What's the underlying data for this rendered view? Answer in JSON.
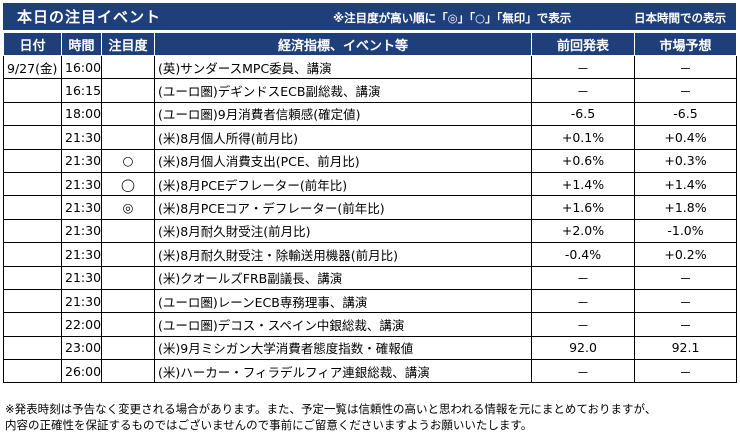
{
  "header": {
    "title": "本日の注目イベント",
    "note": "※注目度が高い順に「◎」「○」「無印」で表示",
    "timezone": "日本時間での表示"
  },
  "columns": [
    "日付",
    "時間",
    "注目度",
    "経済指標、イベント等",
    "前回発表",
    "市場予想"
  ],
  "rows": [
    {
      "date": "9/27(金)",
      "time": "16:00",
      "mark": "",
      "event": "(英)サンダースMPC委員、講演",
      "prev": "－",
      "forecast": "－"
    },
    {
      "date": "",
      "time": "16:15",
      "mark": "",
      "event": "(ユーロ圏)デギンドスECB副総裁、講演",
      "prev": "－",
      "forecast": "－"
    },
    {
      "date": "",
      "time": "18:00",
      "mark": "",
      "event": "(ユーロ圏)9月消費者信頼感(確定値)",
      "prev": "-6.5",
      "forecast": "-6.5"
    },
    {
      "date": "",
      "time": "21:30",
      "mark": "",
      "event": "(米)8月個人所得(前月比)",
      "prev": "+0.1%",
      "forecast": "+0.4%"
    },
    {
      "date": "",
      "time": "21:30",
      "mark": "○",
      "event": "(米)8月個人消費支出(PCE、前月比)",
      "prev": "+0.6%",
      "forecast": "+0.3%"
    },
    {
      "date": "",
      "time": "21:30",
      "mark": "◯",
      "event": "(米)8月PCEデフレーター(前年比)",
      "prev": "+1.4%",
      "forecast": "+1.4%"
    },
    {
      "date": "",
      "time": "21:30",
      "mark": "◎",
      "event": "(米)8月PCEコア・デフレーター(前年比)",
      "prev": "+1.6%",
      "forecast": "+1.8%"
    },
    {
      "date": "",
      "time": "21:30",
      "mark": "",
      "event": "(米)8月耐久財受注(前月比)",
      "prev": "+2.0%",
      "forecast": "-1.0%"
    },
    {
      "date": "",
      "time": "21:30",
      "mark": "",
      "event": "(米)8月耐久財受注・除輸送用機器(前月比)",
      "prev": "-0.4%",
      "forecast": "+0.2%"
    },
    {
      "date": "",
      "time": "21:30",
      "mark": "",
      "event": "(米)クオールズFRB副議長、講演",
      "prev": "－",
      "forecast": "－"
    },
    {
      "date": "",
      "time": "21:30",
      "mark": "",
      "event": "(ユーロ圏)レーンECB専務理事、講演",
      "prev": "－",
      "forecast": "－"
    },
    {
      "date": "",
      "time": "22:00",
      "mark": "",
      "event": "(ユーロ圏)デコス・スペイン中銀総裁、講演",
      "prev": "－",
      "forecast": "－"
    },
    {
      "date": "",
      "time": "23:00",
      "mark": "",
      "event": "(米)9月ミシガン大学消費者態度指数・確報値",
      "prev": "92.0",
      "forecast": "92.1"
    },
    {
      "date": "",
      "time": "26:00",
      "mark": "",
      "event": "(米)ハーカー・フィラデルフィア連銀総裁、講演",
      "prev": "－",
      "forecast": "－"
    }
  ],
  "footer": {
    "line1": "※発表時刻は予告なく変更される場合があります。また、予定一覧は信頼性の高いと思われる情報を元にまとめておりますが、",
    "line2": "内容の正確性を保証するものではございませんので事前にご留意くださいますようお願いいたします。"
  },
  "colors": {
    "header_bg": "#1f3f7a"
  }
}
